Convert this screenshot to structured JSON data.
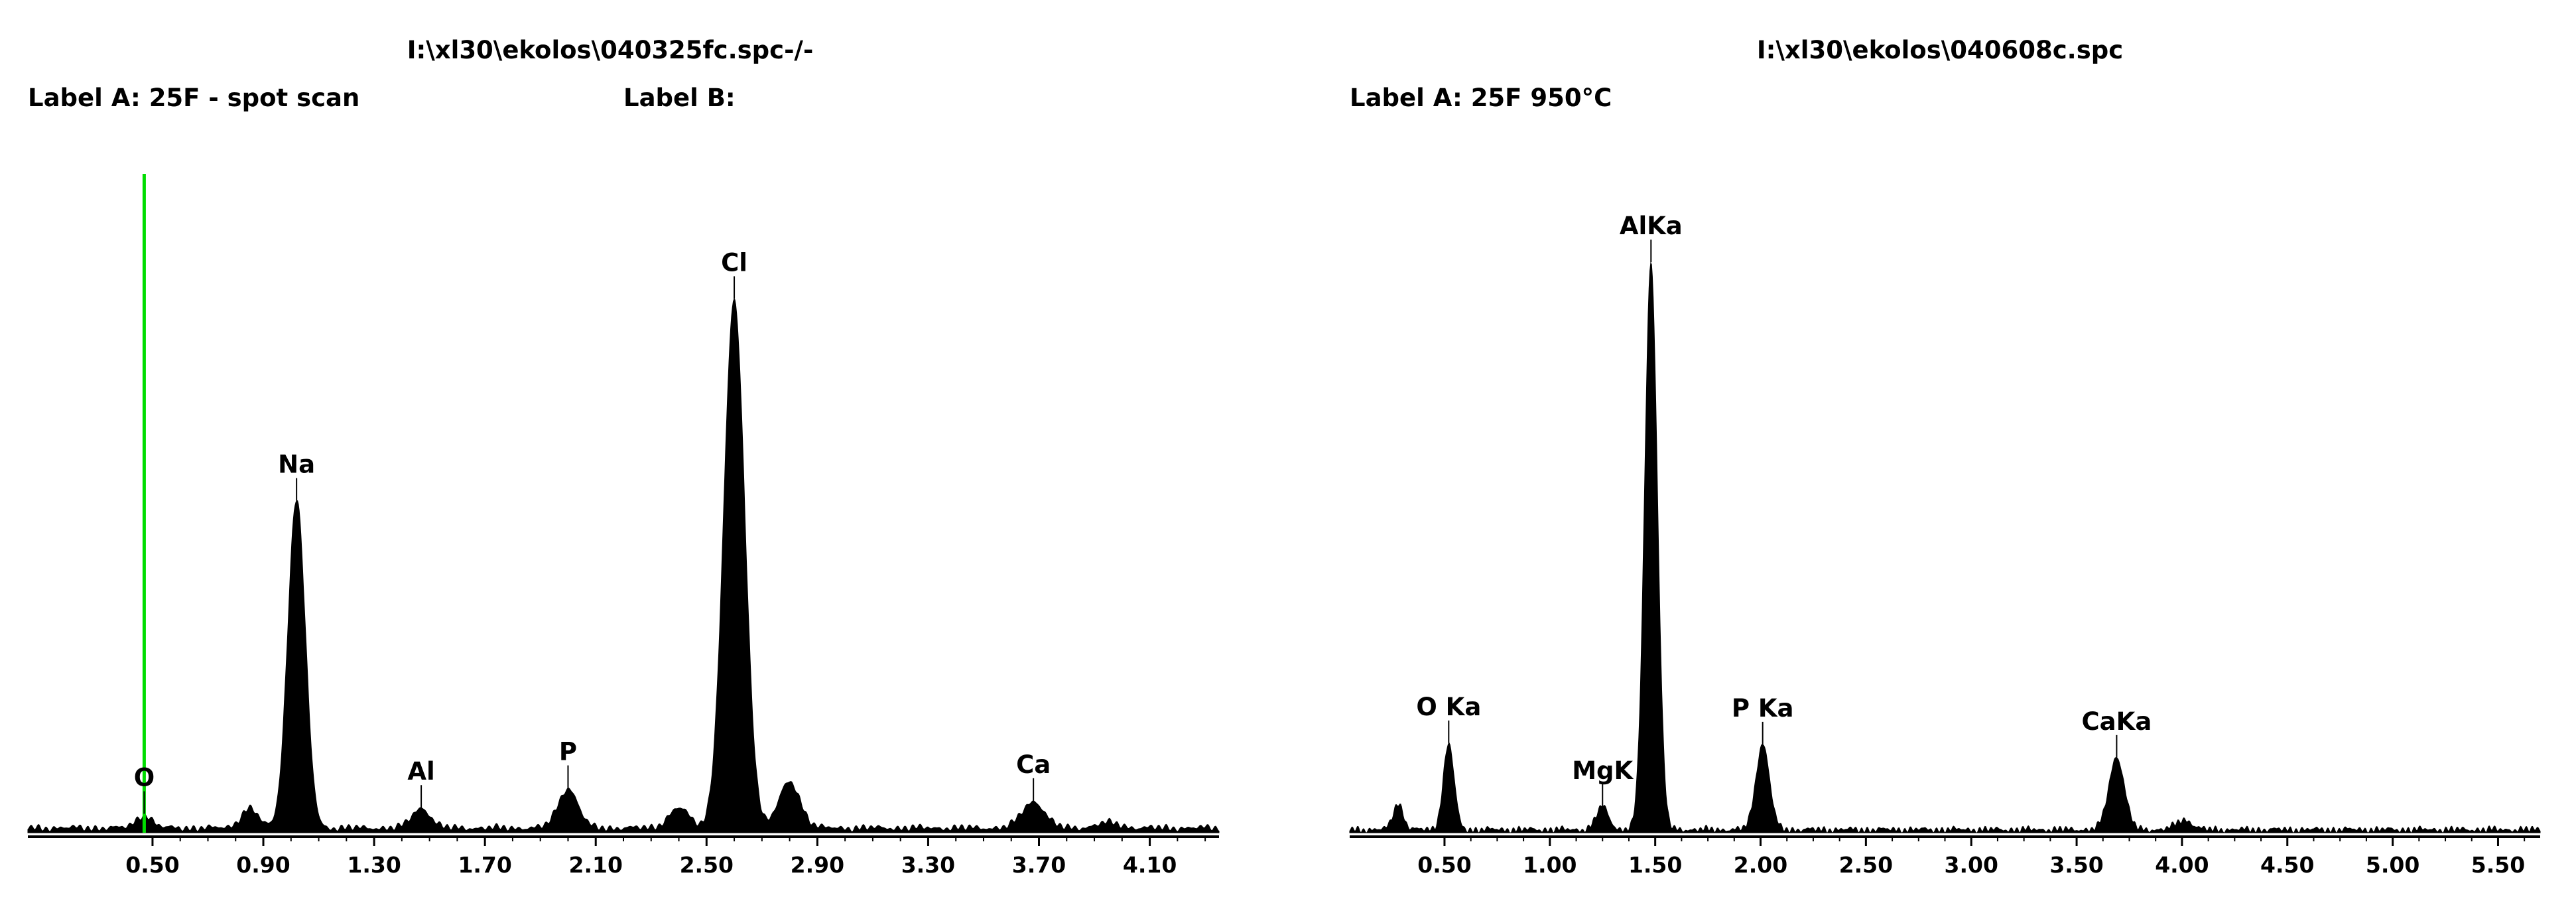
{
  "chart_data": [
    {
      "type": "area",
      "title": "I:\\xl30\\ekolos\\040325fc.spc-/-",
      "label_a": "Label A: 25F - spot scan",
      "label_b": "Label B:",
      "xlim": [
        0.05,
        4.35
      ],
      "ylim": [
        0,
        100
      ],
      "x_ticks": [
        "0.50",
        "0.90",
        "1.30",
        "1.70",
        "2.10",
        "2.50",
        "2.90",
        "3.30",
        "3.70",
        "4.10"
      ],
      "x_tick_values": [
        0.5,
        0.9,
        1.3,
        1.7,
        2.1,
        2.5,
        2.9,
        3.3,
        3.7,
        4.1
      ],
      "cursor_x": 0.47,
      "cursor_color": "#00dd00",
      "peaks": [
        {
          "label": "O",
          "x": 0.47,
          "height": 2
        },
        {
          "label": "Na",
          "x": 1.02,
          "height": 50
        },
        {
          "label": "Al",
          "x": 1.47,
          "height": 3
        },
        {
          "label": "P",
          "x": 2.0,
          "height": 6
        },
        {
          "label": "Cl",
          "x": 2.6,
          "height": 80
        },
        {
          "label": "Ca",
          "x": 3.68,
          "height": 4
        }
      ],
      "unlabeled_peaks": [
        {
          "x": 0.85,
          "height": 3
        },
        {
          "x": 2.4,
          "height": 3
        },
        {
          "x": 2.8,
          "height": 7
        },
        {
          "x": 3.95,
          "height": 0.8
        }
      ]
    },
    {
      "type": "area",
      "title": "I:\\xl30\\ekolos\\040608c.spc",
      "label_a": "Label A: 25F 950°C",
      "xlim": [
        0.05,
        5.7
      ],
      "ylim": [
        0,
        100
      ],
      "x_ticks": [
        "0.50",
        "1.00",
        "1.50",
        "2.00",
        "2.50",
        "3.00",
        "3.50",
        "4.00",
        "4.50",
        "5.00",
        "5.50"
      ],
      "x_tick_values": [
        0.5,
        1.0,
        1.5,
        2.0,
        2.5,
        3.0,
        3.5,
        4.0,
        4.5,
        5.0,
        5.5
      ],
      "peaks": [
        {
          "label": "O Ka",
          "x": 0.52,
          "height": 13
        },
        {
          "label": "MgK",
          "x": 1.25,
          "height": 3.5
        },
        {
          "label": "AlKa",
          "x": 1.48,
          "height": 86
        },
        {
          "label": "P Ka",
          "x": 2.01,
          "height": 13
        },
        {
          "label": "CaKa",
          "x": 3.69,
          "height": 11
        }
      ],
      "unlabeled_peaks": [
        {
          "x": 0.28,
          "height": 4
        },
        {
          "x": 4.01,
          "height": 1.5
        }
      ]
    }
  ]
}
